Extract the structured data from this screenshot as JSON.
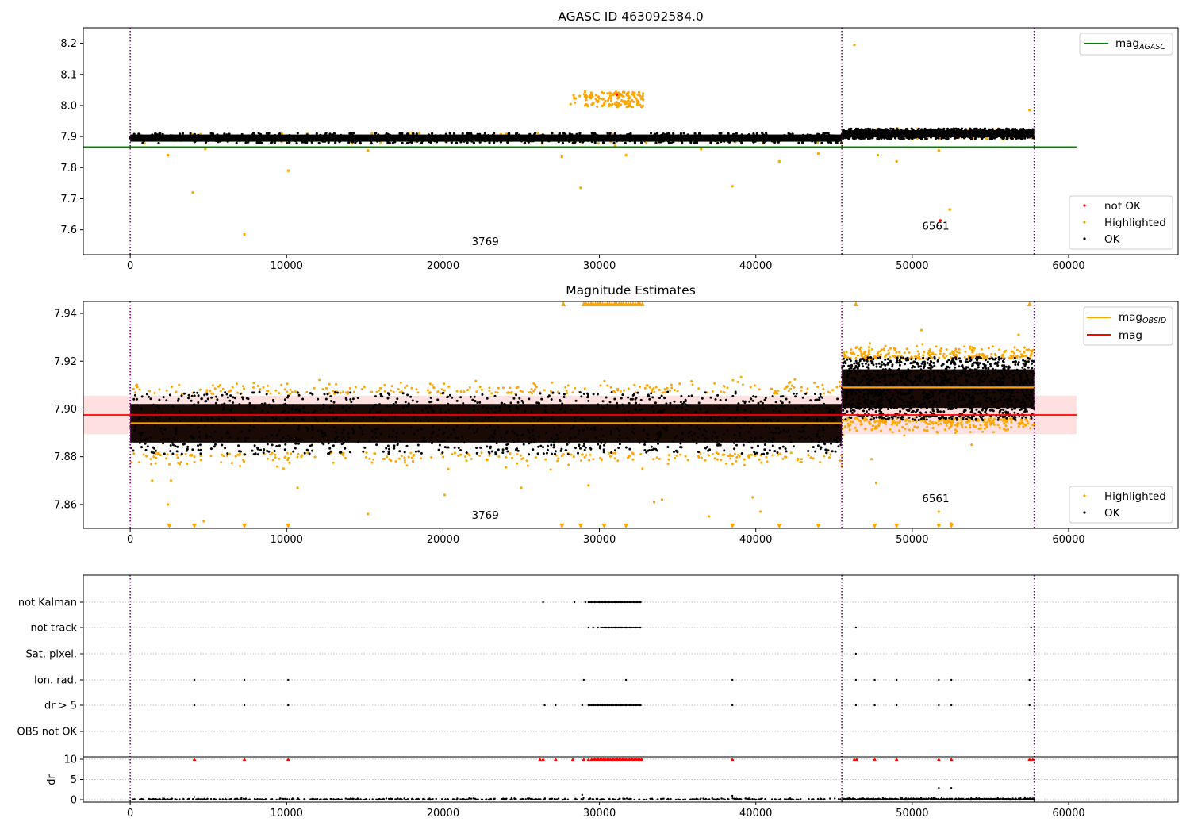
{
  "chart_data": [
    {
      "type": "scatter",
      "title": "AGASC ID 463092584.0",
      "xlim": [
        -3000,
        67000
      ],
      "ylim": [
        7.52,
        8.25
      ],
      "xticks": [
        "0",
        "10000",
        "20000",
        "30000",
        "40000",
        "50000",
        "60000"
      ],
      "yticks": [
        "7.6",
        "7.7",
        "7.8",
        "7.9",
        "8.0",
        "8.1",
        "8.2"
      ],
      "obs_boundaries": [
        0,
        45500,
        57800
      ],
      "obs_labels": [
        {
          "text": "3769",
          "x": 22700,
          "y": 7.55
        },
        {
          "text": "6561",
          "x": 51500,
          "y": 7.6
        }
      ],
      "reference_lines": [
        {
          "name": "mag",
          "subscript": "AGASC",
          "value": 7.866,
          "x_range": [
            -3000,
            60500
          ],
          "color": "#008000"
        }
      ],
      "legend_top": {
        "position": "upper right",
        "entries": [
          {
            "label": "mag",
            "subscript": "AGASC",
            "color": "#008000",
            "marker": "line"
          }
        ]
      },
      "legend_bottom": {
        "position": "lower right",
        "entries": [
          {
            "label": "not OK",
            "color": "#ff0000",
            "marker": "dot"
          },
          {
            "label": "Highlighted",
            "color": "#ffa500",
            "marker": "dot"
          },
          {
            "label": "OK",
            "color": "#000000",
            "marker": "dot"
          }
        ]
      },
      "series": [
        {
          "label": "OK",
          "color": "#000000",
          "segments": [
            {
              "x_range": [
                0,
                45500
              ],
              "mean": 7.895,
              "spread": 0.012
            },
            {
              "x_range": [
                45500,
                57800
              ],
              "mean": 7.909,
              "spread": 0.012
            }
          ]
        },
        {
          "label": "Highlighted",
          "color": "#ffa500",
          "points": [
            [
              4000,
              7.72
            ],
            [
              7300,
              7.585
            ],
            [
              10100,
              7.79
            ],
            [
              2400,
              7.84
            ],
            [
              4800,
              7.86
            ],
            [
              15200,
              7.855
            ],
            [
              27600,
              7.835
            ],
            [
              28800,
              7.735
            ],
            [
              31000,
              7.87
            ],
            [
              31700,
              7.84
            ],
            [
              38500,
              7.74
            ],
            [
              41500,
              7.82
            ],
            [
              44000,
              7.845
            ],
            [
              46300,
              8.195
            ],
            [
              47800,
              7.84
            ],
            [
              49000,
              7.82
            ],
            [
              51700,
              7.855
            ],
            [
              52400,
              7.665
            ],
            [
              57500,
              7.985
            ],
            [
              33000,
              7.88
            ],
            [
              36500,
              7.86
            ]
          ],
          "cluster": {
            "x_range": [
              28000,
              32800
            ],
            "y_range": [
              7.995,
              8.045
            ],
            "note": "extra"
          }
        },
        {
          "label": "not OK",
          "color": "#ff0000",
          "points": [
            [
              31100,
              8.035
            ],
            [
              51800,
              7.63
            ]
          ]
        }
      ]
    },
    {
      "type": "scatter",
      "title": "Magnitude Estimates",
      "xlim": [
        -3000,
        67000
      ],
      "ylim": [
        7.85,
        7.945
      ],
      "xticks": [
        "0",
        "10000",
        "20000",
        "30000",
        "40000",
        "50000",
        "60000"
      ],
      "yticks": [
        "7.86",
        "7.88",
        "7.90",
        "7.92",
        "7.94"
      ],
      "obs_boundaries": [
        0,
        45500,
        57800
      ],
      "obs_labels": [
        {
          "text": "3769",
          "x": 22700,
          "y": 7.854
        },
        {
          "text": "6561",
          "x": 51500,
          "y": 7.861
        }
      ],
      "reference_lines": [
        {
          "name": "mag",
          "value": 7.8975,
          "band": [
            7.8895,
            7.9055
          ],
          "x_range": [
            -3000,
            60500
          ],
          "color": "#ff0000"
        },
        {
          "name": "mag",
          "subscript": "OBSID",
          "color": "#ffa500",
          "segments": [
            {
              "x_range": [
                0,
                45500
              ],
              "value": 7.894
            },
            {
              "x_range": [
                45500,
                57800
              ],
              "value": 7.909
            }
          ]
        }
      ],
      "legend_top": {
        "position": "upper right",
        "entries": [
          {
            "label": "mag",
            "subscript": "OBSID",
            "color": "#ffa500",
            "marker": "line"
          },
          {
            "label": "mag",
            "color": "#ff0000",
            "marker": "line"
          }
        ]
      },
      "legend_bottom": {
        "position": "lower right",
        "entries": [
          {
            "label": "Highlighted",
            "color": "#ffa500",
            "marker": "dot"
          },
          {
            "label": "OK",
            "color": "#000000",
            "marker": "dot"
          }
        ]
      },
      "series": [
        {
          "label": "OK",
          "color": "#000000",
          "segments": [
            {
              "x_range": [
                0,
                45500
              ],
              "mean": 7.894,
              "spread": 0.0085
            },
            {
              "x_range": [
                45500,
                57800
              ],
              "mean": 7.9085,
              "spread": 0.0085
            }
          ]
        },
        {
          "label": "Highlighted",
          "color": "#ffa500",
          "clipped_high": [
            29000,
            29500,
            30000,
            30500,
            31000,
            31500,
            32000,
            32500,
            27700,
            46400,
            57500
          ],
          "clipped_low": [
            2500,
            4100,
            7300,
            10100,
            27600,
            28800,
            30300,
            31700,
            38500,
            41500,
            44000,
            47600,
            49000,
            51700,
            52500
          ],
          "points": [
            [
              1400,
              7.87
            ],
            [
              2600,
              7.87
            ],
            [
              2400,
              7.86
            ],
            [
              4700,
              7.853
            ],
            [
              10700,
              7.867
            ],
            [
              15200,
              7.856
            ],
            [
              20100,
              7.864
            ],
            [
              25000,
              7.867
            ],
            [
              29300,
              7.868
            ],
            [
              33500,
              7.861
            ],
            [
              34000,
              7.862
            ],
            [
              37000,
              7.855
            ],
            [
              39800,
              7.863
            ],
            [
              40300,
              7.857
            ],
            [
              47400,
              7.879
            ],
            [
              47700,
              7.869
            ],
            [
              51700,
              7.857
            ],
            [
              52500,
              7.852
            ],
            [
              50600,
              7.933
            ],
            [
              56800,
              7.931
            ],
            [
              53800,
              7.885
            ],
            [
              45500,
              7.876
            ]
          ]
        }
      ]
    },
    {
      "type": "scatter",
      "title": "",
      "xlim": [
        -3000,
        67000
      ],
      "ylim": [
        -0.5,
        11
      ],
      "xticks": [
        "0",
        "10000",
        "20000",
        "30000",
        "40000",
        "50000",
        "60000"
      ],
      "yticks": [
        "0",
        "5",
        "10"
      ],
      "ylabel": "dr",
      "obs_boundaries": [
        0,
        45500,
        57800
      ],
      "flag_rows": [
        "not Kalman",
        "not track",
        "Sat. pixel.",
        "Ion. rad.",
        "dr > 5",
        "OBS not OK"
      ],
      "flag_points": {
        "not Kalman": [
          26400,
          28400,
          29100,
          29300,
          29500,
          29700,
          30000,
          30200,
          30400,
          30600,
          30800,
          31000,
          31200,
          31400,
          31600,
          31800,
          32000,
          32200,
          32400,
          32600
        ],
        "not track": [
          29300,
          29600,
          29900,
          30100,
          30400,
          30600,
          30800,
          31000,
          31200,
          31400,
          31700,
          32000,
          32300,
          32600,
          46400,
          57600
        ],
        "Sat. pixel.": [
          46400
        ],
        "Ion. rad.": [
          4100,
          7300,
          10100,
          29000,
          31700,
          38500,
          46400,
          47600,
          49000,
          51700,
          52500,
          57500
        ],
        "dr > 5": [
          4100,
          7300,
          10100,
          26500,
          27200,
          28900,
          29300,
          29600,
          29900,
          30200,
          30500,
          30800,
          31100,
          31400,
          31700,
          32000,
          32300,
          32600,
          38500,
          46400,
          47600,
          49000,
          51700,
          52500,
          57500
        ],
        "OBS not OK": []
      },
      "dr_ok": {
        "color": "#000000",
        "points": [
          [
            28900,
            1.2
          ],
          [
            38500,
            1.0
          ],
          [
            51700,
            2.9
          ],
          [
            52500,
            2.9
          ],
          [
            4100,
            0.7
          ],
          [
            46000,
            0.5
          ],
          [
            57200,
            0.6
          ]
        ]
      },
      "dr_capped": {
        "color": "#ff0000",
        "value": 10,
        "x": [
          4100,
          7300,
          10100,
          26200,
          26400,
          27200,
          28300,
          29000,
          29300,
          29500,
          29700,
          29900,
          30100,
          30300,
          30500,
          30700,
          30900,
          31100,
          31300,
          31500,
          31700,
          31900,
          32100,
          32300,
          32500,
          32700,
          38500,
          46300,
          46450,
          47600,
          49000,
          51700,
          52500,
          57500,
          57700
        ]
      }
    }
  ]
}
